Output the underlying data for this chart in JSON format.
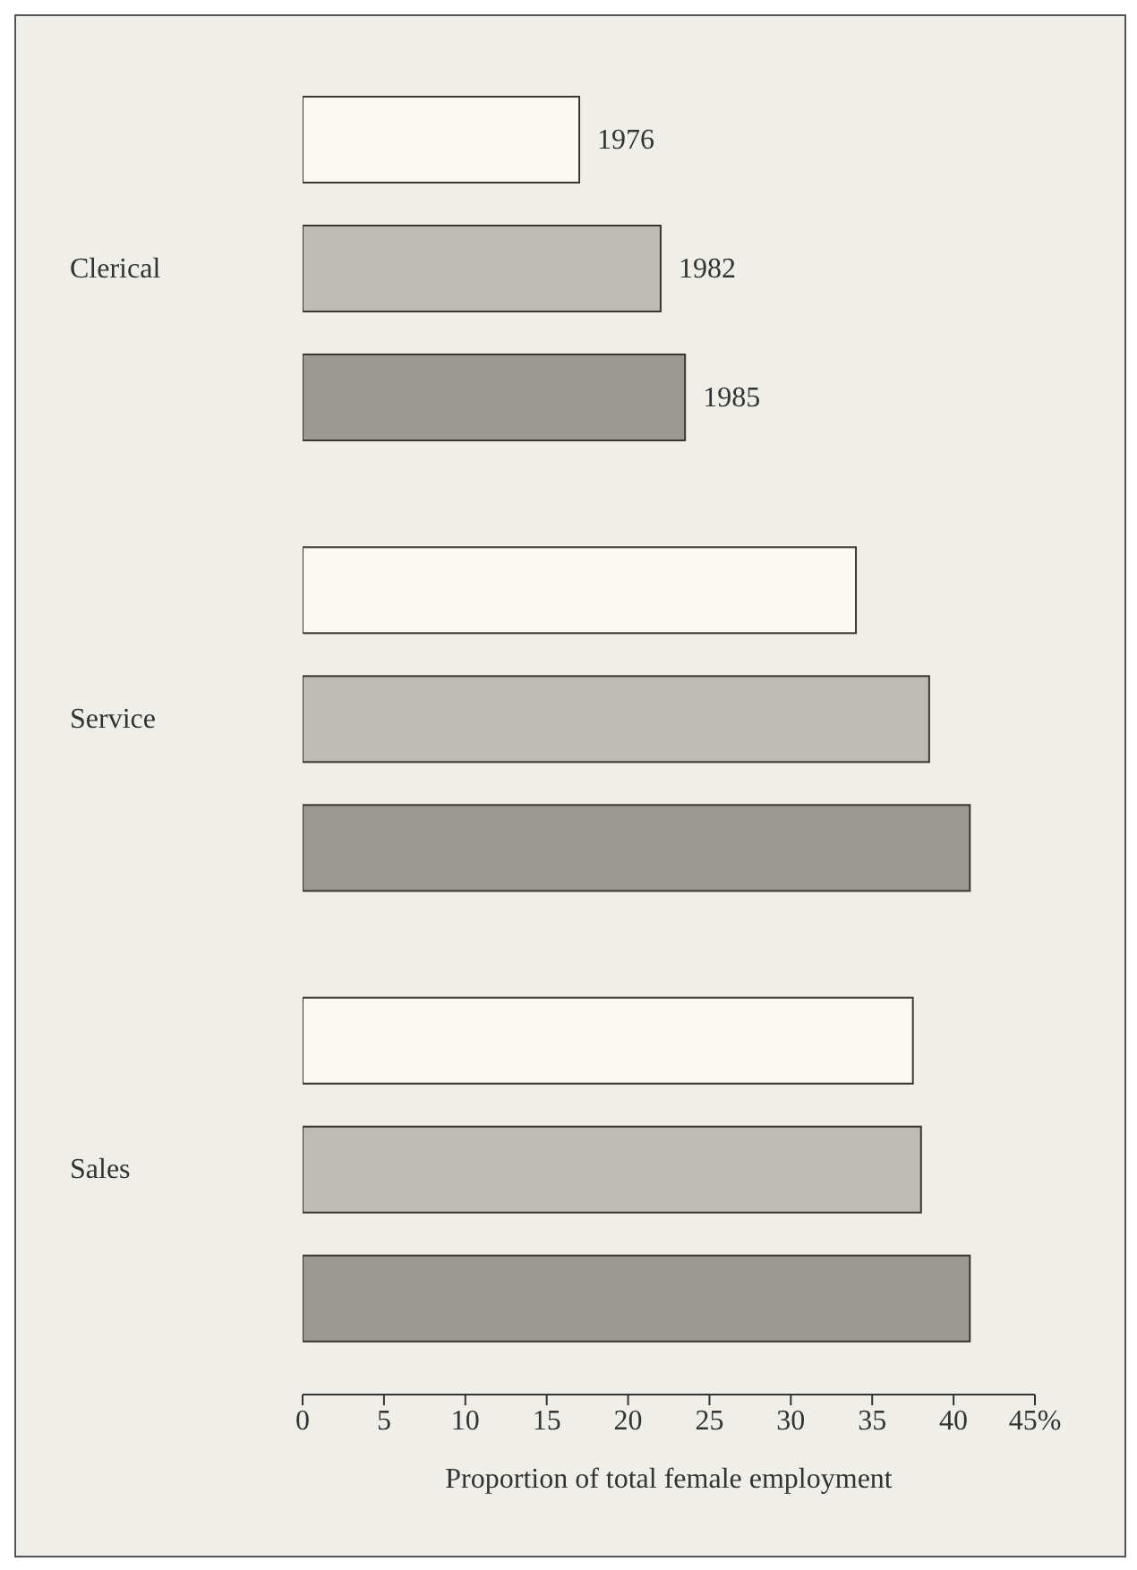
{
  "chart_data": {
    "type": "bar",
    "orientation": "horizontal",
    "xlabel": "Proportion of total female employment",
    "categories": [
      "Clerical",
      "Service",
      "Sales"
    ],
    "series": [
      {
        "name": "1976",
        "color": "#faf9f4",
        "values": [
          17,
          34,
          37.5
        ]
      },
      {
        "name": "1982",
        "color": "#bdbbb3",
        "values": [
          22,
          38.5,
          38
        ]
      },
      {
        "name": "1985",
        "color": "#9a9890",
        "values": [
          23.5,
          41,
          41
        ]
      }
    ],
    "xlim": [
      0,
      45
    ],
    "xticks": [
      0,
      5,
      10,
      15,
      20,
      25,
      30,
      35,
      40,
      {
        "value": 45,
        "label": "45%"
      }
    ]
  }
}
